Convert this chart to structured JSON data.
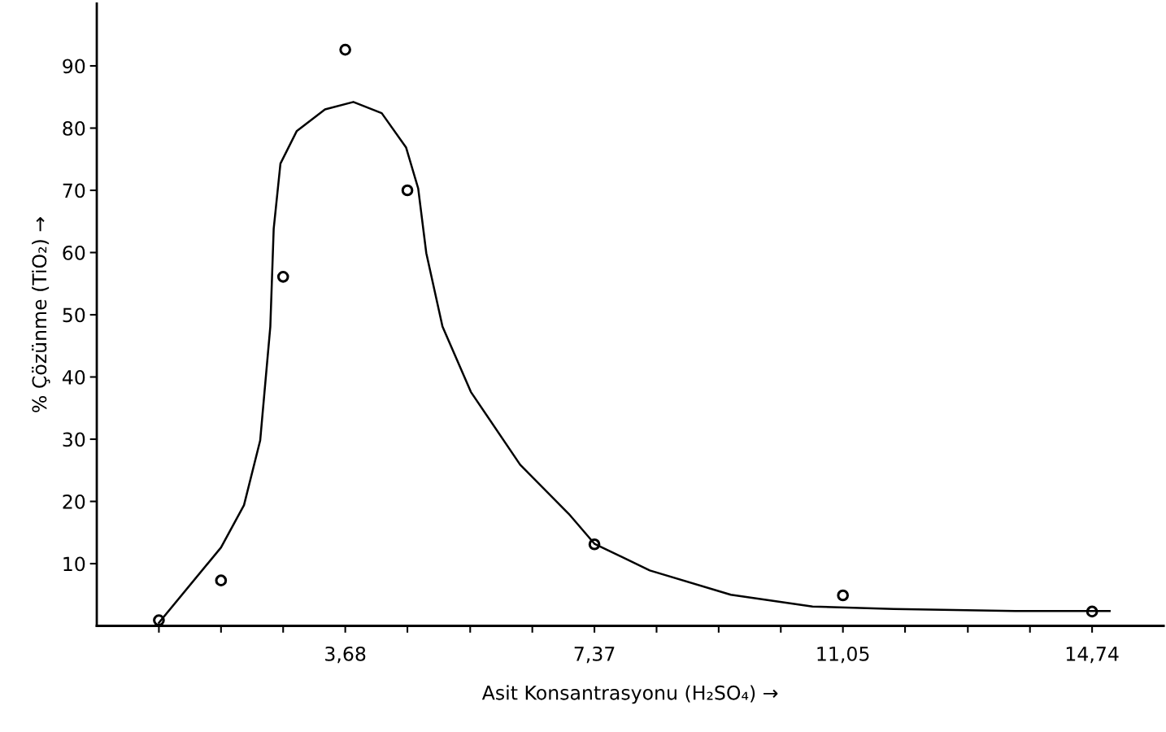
{
  "chart_data": {
    "type": "scatter",
    "xlabel": "Asit Konsantrasyonu (H₂SO₄) →",
    "ylabel": "% Çözünme (TiO₂) →",
    "xlim": [
      0,
      15.8
    ],
    "ylim": [
      0,
      100
    ],
    "xticks": [
      {
        "value": 0.92,
        "label": null
      },
      {
        "value": 1.84,
        "label": null
      },
      {
        "value": 2.76,
        "label": null
      },
      {
        "value": 3.68,
        "label": "3,68"
      },
      {
        "value": 4.6,
        "label": null
      },
      {
        "value": 5.53,
        "label": null
      },
      {
        "value": 6.45,
        "label": null
      },
      {
        "value": 7.37,
        "label": "7,37"
      },
      {
        "value": 8.29,
        "label": null
      },
      {
        "value": 9.21,
        "label": null
      },
      {
        "value": 10.13,
        "label": null
      },
      {
        "value": 11.05,
        "label": "11,05"
      },
      {
        "value": 11.97,
        "label": null
      },
      {
        "value": 12.9,
        "label": null
      },
      {
        "value": 13.82,
        "label": null
      },
      {
        "value": 14.74,
        "label": "14,74"
      }
    ],
    "yticks": [
      10,
      20,
      30,
      40,
      50,
      60,
      70,
      80,
      90
    ],
    "grid": false,
    "series": [
      {
        "color": "#000000",
        "marker": "circle",
        "x": [
          0.92,
          1.84,
          2.76,
          3.68,
          4.6,
          7.37,
          11.05,
          14.74
        ],
        "values": [
          0.9,
          7.3,
          56.1,
          92.6,
          70,
          13.1,
          4.9,
          2.3
        ]
      },
      {
        "type": "line",
        "color": "#000000",
        "marker": "none",
        "line_style": "solid",
        "x": [
          0.92,
          1.84,
          2.18,
          2.42,
          2.57,
          2.62,
          2.72,
          2.96,
          3.38,
          3.8,
          4.22,
          4.58,
          4.76,
          4.88,
          5.12,
          5.54,
          6.27,
          6.99,
          7.37,
          8.19,
          9.39,
          10.6,
          11.8,
          13.6,
          15.0
        ],
        "values": [
          0.5,
          12.6,
          19.4,
          29.8,
          48.1,
          63.8,
          74.3,
          79.5,
          83,
          84.2,
          82.4,
          76.9,
          70.3,
          59.9,
          48.1,
          37.6,
          25.9,
          18,
          13.2,
          8.9,
          5,
          3.1,
          2.7,
          2.4,
          2.4
        ]
      }
    ]
  }
}
